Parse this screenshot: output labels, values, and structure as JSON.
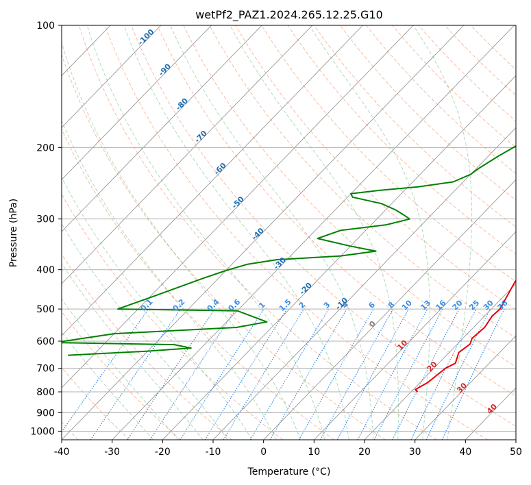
{
  "chart_data": {
    "type": "line",
    "chart_kind": "skew-T log-P diagram",
    "title": "wetPf2_PAZ1.2024.265.12.25.G10",
    "xlabel": "Temperature (°C)",
    "ylabel": "Pressure (hPa)",
    "xlim": [
      -40,
      50
    ],
    "ylim": [
      1050,
      100
    ],
    "y_scale": "log",
    "grid": true,
    "x_ticks": [
      -40,
      -30,
      -20,
      -10,
      0,
      10,
      20,
      30,
      40,
      50
    ],
    "y_ticks": [
      100,
      200,
      300,
      400,
      500,
      600,
      700,
      800,
      900,
      1000
    ],
    "series": [
      {
        "color": "#e8000b",
        "points": [
          [
            7.5,
            100
          ],
          [
            4.5,
            115
          ],
          [
            3.5,
            125
          ],
          [
            3.2,
            135
          ],
          [
            3,
            150
          ],
          [
            2.3,
            160
          ],
          [
            1.8,
            170
          ],
          [
            2.8,
            180
          ],
          [
            5.5,
            200
          ],
          [
            7.5,
            225
          ],
          [
            9.5,
            245
          ],
          [
            10.8,
            265
          ],
          [
            11.5,
            285
          ],
          [
            12.5,
            305
          ],
          [
            14.5,
            330
          ],
          [
            16,
            355
          ],
          [
            16.5,
            375
          ],
          [
            19,
            400
          ],
          [
            19.5,
            430
          ],
          [
            20.8,
            470
          ],
          [
            21.7,
            500
          ],
          [
            21.5,
            520
          ],
          [
            22.2,
            555
          ],
          [
            21.8,
            590
          ],
          [
            22.5,
            610
          ],
          [
            21.9,
            640
          ],
          [
            23.3,
            680
          ],
          [
            22.3,
            700
          ],
          [
            21.9,
            730
          ],
          [
            21.5,
            760
          ],
          [
            20.4,
            790
          ],
          [
            21.3,
            800
          ]
        ]
      },
      {
        "color": "#008000",
        "points": [
          [
            2,
            100
          ],
          [
            1,
            108
          ],
          [
            -1,
            125
          ],
          [
            -2,
            140
          ],
          [
            -2,
            150
          ],
          [
            -3,
            165
          ],
          [
            -4.5,
            180
          ],
          [
            -6,
            195
          ],
          [
            -8,
            210
          ],
          [
            -9.5,
            225
          ],
          [
            -10,
            233
          ],
          [
            -12,
            243
          ],
          [
            -18,
            250
          ],
          [
            -25,
            255
          ],
          [
            -30,
            260
          ],
          [
            -29,
            265
          ],
          [
            -22,
            275
          ],
          [
            -18,
            285
          ],
          [
            -15.5,
            293
          ],
          [
            -13.5,
            300
          ],
          [
            -17,
            310
          ],
          [
            -25,
            320
          ],
          [
            -28,
            335
          ],
          [
            -20,
            350
          ],
          [
            -14,
            360
          ],
          [
            -20,
            370
          ],
          [
            -32,
            378
          ],
          [
            -37,
            388
          ],
          [
            -40,
            402
          ],
          [
            -43,
            420
          ],
          [
            -50,
            470
          ],
          [
            -54,
            500
          ],
          [
            -30,
            505
          ],
          [
            -22,
            538
          ],
          [
            -27,
            555
          ],
          [
            -50,
            575
          ],
          [
            -60,
            605
          ],
          [
            -36,
            612
          ],
          [
            -32,
            624
          ],
          [
            -40,
            635
          ],
          [
            -55,
            650
          ]
        ]
      }
    ],
    "dry_adiabats_theta_c": [
      -60,
      -50,
      -40,
      -30,
      -20,
      -10,
      0,
      10,
      20,
      30,
      40,
      50,
      60,
      70,
      80,
      90,
      100,
      110,
      120,
      130,
      140,
      150,
      160,
      170,
      180
    ],
    "moist_adiabats_start_c_at_1000": [
      -25,
      -20,
      -15,
      -10,
      -5,
      0,
      5,
      10,
      15,
      20,
      25,
      30,
      35
    ],
    "mixing_ratio_lines": [
      {
        "w": 0.1,
        "label": "0.1",
        "color": "#3a8ee6"
      },
      {
        "w": 0.2,
        "label": "0.2",
        "color": "#3a8ee6"
      },
      {
        "w": 0.4,
        "label": "0.4",
        "color": "#3a8ee6"
      },
      {
        "w": 0.6,
        "label": "0.6",
        "color": "#3a8ee6"
      },
      {
        "w": 1,
        "label": "1",
        "color": "#3a8ee6"
      },
      {
        "w": 1.5,
        "label": "1.5",
        "color": "#3a8ee6"
      },
      {
        "w": 2,
        "label": "2",
        "color": "#3a8ee6"
      },
      {
        "w": 3,
        "label": "3",
        "color": "#3a8ee6"
      },
      {
        "w": 4,
        "label": "4",
        "color": "#3a8ee6"
      },
      {
        "w": 6,
        "label": "6",
        "color": "#3a8ee6"
      },
      {
        "w": 8,
        "label": "8",
        "color": "#3a8ee6"
      },
      {
        "w": 10,
        "label": "10",
        "color": "#3a8ee6"
      },
      {
        "w": 13,
        "label": "13",
        "color": "#3a8ee6"
      },
      {
        "w": 16,
        "label": "16",
        "color": "#3a8ee6"
      },
      {
        "w": 20,
        "label": "20",
        "color": "#3a8ee6"
      },
      {
        "w": 25,
        "label": "25",
        "color": "#3a8ee6"
      },
      {
        "w": 30,
        "label": "30",
        "color": "#3a8ee6"
      },
      {
        "w": 36,
        "label": "36",
        "color": "#3a8ee6"
      }
    ],
    "mixing_ratio_label_pressure": 500,
    "isotherm_labels_cold": [
      {
        "t": -100,
        "p": 108
      },
      {
        "t": -90,
        "p": 130
      },
      {
        "t": -80,
        "p": 158
      },
      {
        "t": -70,
        "p": 190
      },
      {
        "t": -60,
        "p": 228
      },
      {
        "t": -50,
        "p": 276
      },
      {
        "t": -40,
        "p": 330
      },
      {
        "t": -30,
        "p": 390
      },
      {
        "t": -20,
        "p": 450
      },
      {
        "t": -10,
        "p": 490
      }
    ],
    "isotherm_labels_warm": [
      {
        "t": 0,
        "p": 550
      },
      {
        "t": 10,
        "p": 620
      },
      {
        "t": 20,
        "p": 700
      },
      {
        "t": 30,
        "p": 790
      },
      {
        "t": 40,
        "p": 890
      }
    ],
    "isotherm_label_colors": {
      "cold": "#1f6fb0",
      "zero": "#808080",
      "warm": "#d62728"
    }
  }
}
